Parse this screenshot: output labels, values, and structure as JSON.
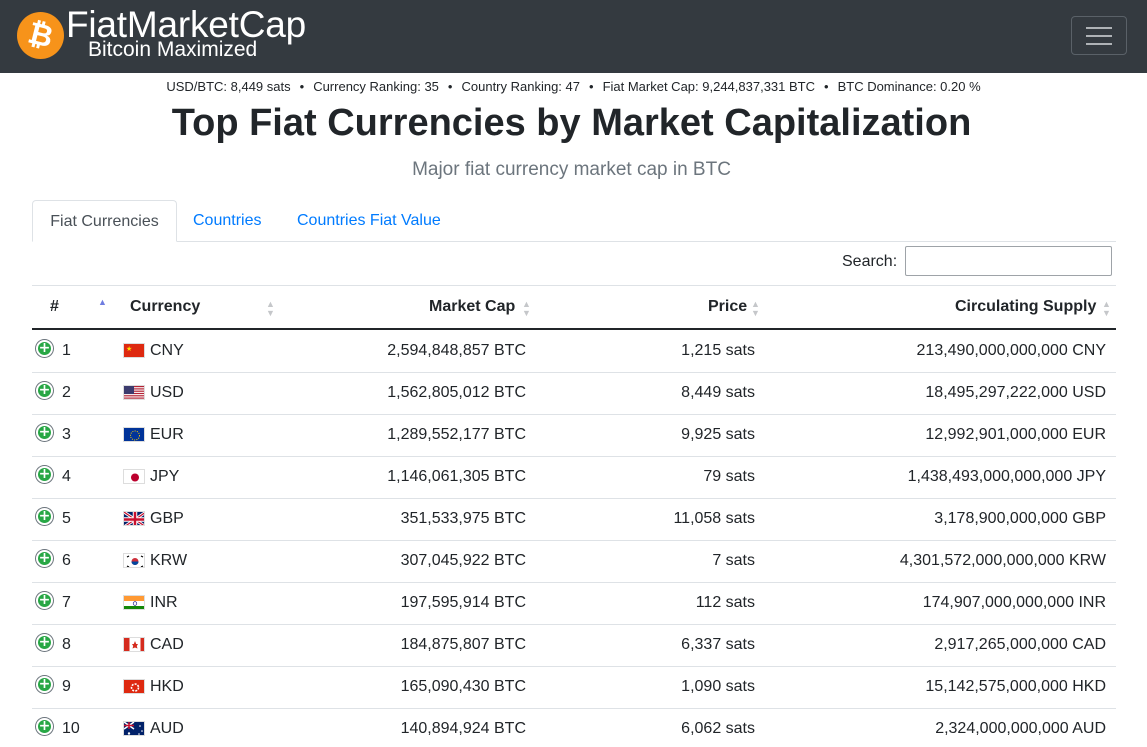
{
  "header": {
    "brand": "FiatMarketCap",
    "tagline": "Bitcoin Maximized",
    "logo_icon": "bitcoin-icon",
    "logo_glyph": "₿",
    "logo_color": "#f7931a",
    "navbar_color": "#343a40"
  },
  "stats": {
    "usd_btc": "USD/BTC: 8,449 sats",
    "currency_ranking": "Currency Ranking: 35",
    "country_ranking": "Country Ranking: 47",
    "fiat_market_cap": "Fiat Market Cap: 9,244,837,331 BTC",
    "btc_dominance": "BTC Dominance: 0.20 %",
    "separator": "•"
  },
  "page": {
    "title": "Top Fiat Currencies by Market Capitalization",
    "subtitle": "Major fiat currency market cap in BTC"
  },
  "tabs": [
    {
      "label": "Fiat Currencies",
      "active": true
    },
    {
      "label": "Countries",
      "active": false
    },
    {
      "label": "Countries Fiat Value",
      "active": false
    }
  ],
  "search": {
    "label": "Search:",
    "value": ""
  },
  "table": {
    "columns": [
      "#",
      "Currency",
      "Market Cap",
      "Price",
      "Circulating Supply"
    ],
    "rows": [
      {
        "rank": "1",
        "code": "CNY",
        "market_cap": "2,594,848,857 BTC",
        "price": "1,215 sats",
        "supply": "213,490,000,000,000 CNY"
      },
      {
        "rank": "2",
        "code": "USD",
        "market_cap": "1,562,805,012 BTC",
        "price": "8,449 sats",
        "supply": "18,495,297,222,000 USD"
      },
      {
        "rank": "3",
        "code": "EUR",
        "market_cap": "1,289,552,177 BTC",
        "price": "9,925 sats",
        "supply": "12,992,901,000,000 EUR"
      },
      {
        "rank": "4",
        "code": "JPY",
        "market_cap": "1,146,061,305 BTC",
        "price": "79 sats",
        "supply": "1,438,493,000,000,000 JPY"
      },
      {
        "rank": "5",
        "code": "GBP",
        "market_cap": "351,533,975 BTC",
        "price": "11,058 sats",
        "supply": "3,178,900,000,000 GBP"
      },
      {
        "rank": "6",
        "code": "KRW",
        "market_cap": "307,045,922 BTC",
        "price": "7 sats",
        "supply": "4,301,572,000,000,000 KRW"
      },
      {
        "rank": "7",
        "code": "INR",
        "market_cap": "197,595,914 BTC",
        "price": "112 sats",
        "supply": "174,907,000,000,000 INR"
      },
      {
        "rank": "8",
        "code": "CAD",
        "market_cap": "184,875,807 BTC",
        "price": "6,337 sats",
        "supply": "2,917,265,000,000 CAD"
      },
      {
        "rank": "9",
        "code": "HKD",
        "market_cap": "165,090,430 BTC",
        "price": "1,090 sats",
        "supply": "15,142,575,000,000 HKD"
      },
      {
        "rank": "10",
        "code": "AUD",
        "market_cap": "140,894,924 BTC",
        "price": "6,062 sats",
        "supply": "2,324,000,000,000 AUD"
      }
    ]
  },
  "icons": {
    "expand_row": "plus-circle-icon",
    "menu": "hamburger-icon",
    "sort": "sort-arrows-icon"
  },
  "colors": {
    "link": "#007bff",
    "expand_green": "#28a745",
    "subtitle_gray": "#6c757d"
  }
}
